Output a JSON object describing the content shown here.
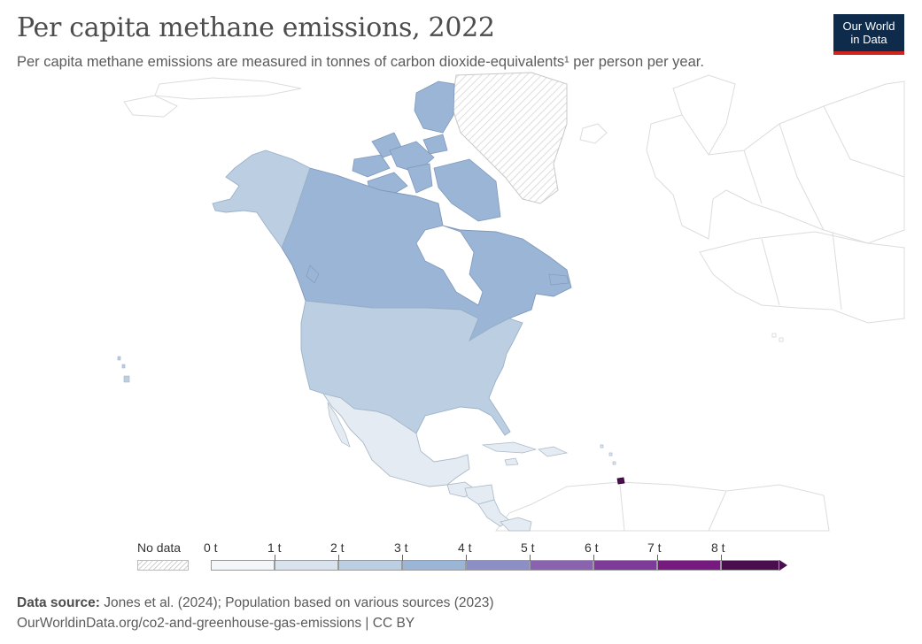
{
  "title": "Per capita methane emissions, 2022",
  "subtitle": "Per capita methane emissions are measured in tonnes of carbon dioxide-equivalents¹ per person per year.",
  "logo": {
    "line1": "Our World",
    "line2": "in Data"
  },
  "legend": {
    "no_data_label": "No data",
    "ticks": [
      "0 t",
      "1 t",
      "2 t",
      "3 t",
      "4 t",
      "5 t",
      "6 t",
      "7 t",
      "8 t"
    ],
    "bin_colors": [
      "#f4f7fa",
      "#d9e3ee",
      "#bccfe2",
      "#9ab5d5",
      "#8c8fc6",
      "#8a63b0",
      "#7e3a98",
      "#761a80",
      "#4a0d4e"
    ]
  },
  "map_values": [
    {
      "name": "Canada",
      "bin": "3-4 t",
      "color": "#9ab5d5"
    },
    {
      "name": "United States",
      "bin": "2-3 t",
      "color": "#bccfe2"
    },
    {
      "name": "Mexico",
      "bin": "1-2 t",
      "color": "#d9e3ee"
    },
    {
      "name": "Cuba",
      "bin": "1-2 t",
      "color": "#d9e3ee"
    },
    {
      "name": "Greenland",
      "bin": "No data",
      "color": "hatched"
    },
    {
      "name": "Trinidad and Tobago",
      "bin": "8+ t",
      "color": "#4a0d4e"
    }
  ],
  "source": {
    "label": "Data source:",
    "text": "Jones et al. (2024); Population based on various sources (2023)",
    "url": "OurWorldinData.org/co2-and-greenhouse-gas-emissions | CC BY"
  }
}
